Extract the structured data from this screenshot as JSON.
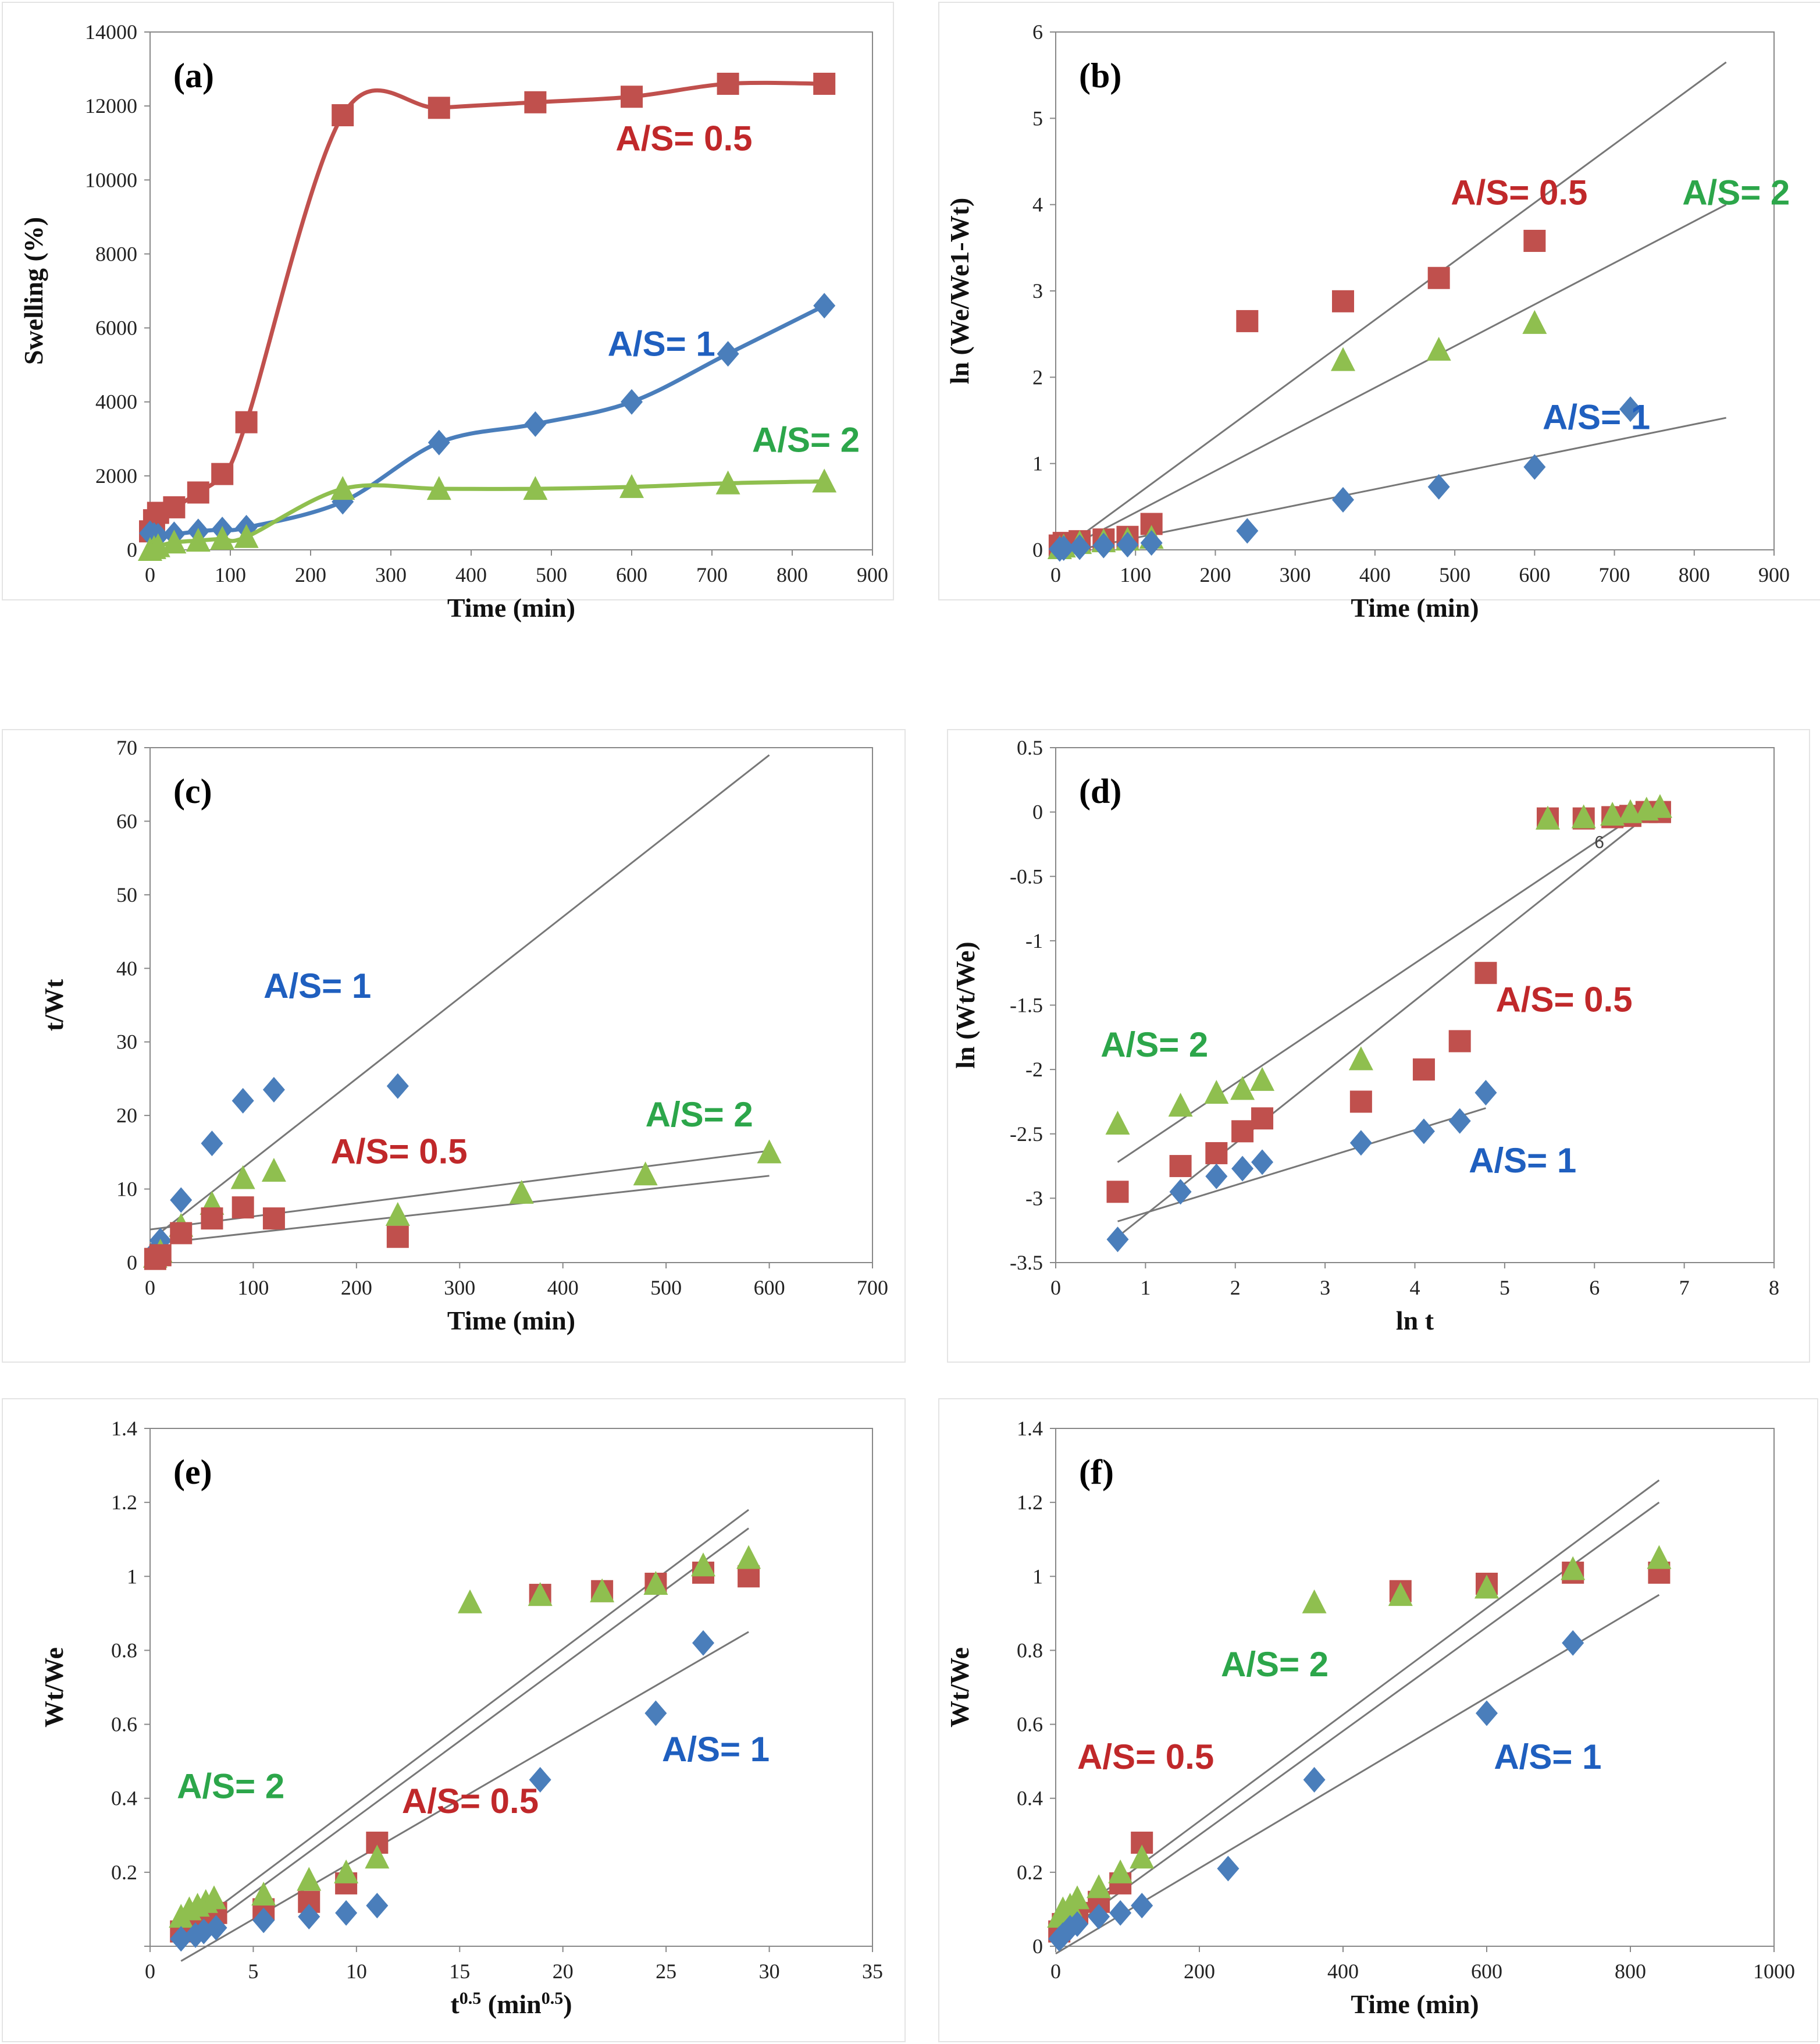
{
  "colors": {
    "red": "#c0504d",
    "blue": "#4a7ebb",
    "green": "#8fbf4f",
    "ann_red": "#c0282a",
    "ann_blue": "#1f5fbf",
    "ann_green": "#2ca64a"
  },
  "chart_data": [
    {
      "id": "a",
      "type": "line",
      "panel_label": "(a)",
      "xlabel": "Time (min)",
      "ylabel": "Swelling (%)",
      "xlim": [
        0,
        900
      ],
      "ylim": [
        0,
        14000
      ],
      "xticks": [
        "0",
        "100",
        "200",
        "300",
        "400",
        "500",
        "600",
        "700",
        "800",
        "900"
      ],
      "yticks": [
        "0",
        "2000",
        "4000",
        "6000",
        "8000",
        "10000",
        "12000",
        "14000"
      ],
      "series": [
        {
          "name": "A/S= 0.5",
          "color": "red",
          "marker": "square",
          "smooth": true,
          "x": [
            0,
            5,
            10,
            30,
            60,
            90,
            120,
            240,
            360,
            480,
            600,
            720,
            840
          ],
          "y": [
            500,
            800,
            1000,
            1150,
            1550,
            2050,
            3450,
            11750,
            11950,
            12100,
            12250,
            12600,
            12600
          ]
        },
        {
          "name": "A/S= 1",
          "color": "blue",
          "marker": "diamond",
          "smooth": true,
          "x": [
            0,
            5,
            10,
            30,
            60,
            90,
            120,
            240,
            360,
            480,
            600,
            720,
            840
          ],
          "y": [
            450,
            400,
            380,
            420,
            500,
            550,
            600,
            1300,
            2900,
            3400,
            4000,
            5300,
            6600
          ]
        },
        {
          "name": "A/S= 2",
          "color": "green",
          "marker": "triangle",
          "smooth": true,
          "x": [
            0,
            5,
            10,
            30,
            60,
            90,
            120,
            240,
            360,
            480,
            600,
            720,
            840
          ],
          "y": [
            0,
            50,
            100,
            200,
            250,
            300,
            350,
            1650,
            1650,
            1650,
            1700,
            1800,
            1850
          ]
        }
      ],
      "annotations": [
        {
          "text": "A/S= 0.5",
          "color": "ann_red",
          "x": 580,
          "y": 10800
        },
        {
          "text": "A/S= 1",
          "color": "ann_blue",
          "x": 570,
          "y": 5250
        },
        {
          "text": "A/S= 2",
          "color": "ann_green",
          "x": 750,
          "y": 2650
        }
      ]
    },
    {
      "id": "b",
      "type": "scatter",
      "panel_label": "(b)",
      "xlabel": "Time (min)",
      "ylabel": "ln (We/We1-Wt)",
      "xlim": [
        0,
        900
      ],
      "ylim": [
        0,
        6
      ],
      "xticks": [
        "0",
        "100",
        "200",
        "300",
        "400",
        "500",
        "600",
        "700",
        "800",
        "900"
      ],
      "yticks": [
        "0",
        "1",
        "2",
        "3",
        "4",
        "5",
        "6"
      ],
      "series": [
        {
          "name": "A/S= 0.5",
          "color": "red",
          "marker": "square",
          "x": [
            5,
            10,
            30,
            60,
            90,
            120,
            240,
            360,
            480,
            600
          ],
          "y": [
            0.05,
            0.08,
            0.1,
            0.12,
            0.15,
            0.3,
            2.65,
            2.88,
            3.15,
            3.58
          ]
        },
        {
          "name": "A/S= 2",
          "color": "green",
          "marker": "triangle",
          "x": [
            5,
            10,
            30,
            60,
            90,
            120,
            360,
            480,
            600
          ],
          "y": [
            0.02,
            0.04,
            0.08,
            0.1,
            0.12,
            0.14,
            2.2,
            2.32,
            2.63
          ]
        },
        {
          "name": "A/S= 1",
          "color": "blue",
          "marker": "diamond",
          "x": [
            5,
            10,
            30,
            60,
            90,
            120,
            240,
            360,
            480,
            600,
            720
          ],
          "y": [
            0.01,
            0.02,
            0.03,
            0.05,
            0.06,
            0.08,
            0.22,
            0.58,
            0.73,
            0.96,
            1.63
          ]
        }
      ],
      "fit_lines": [
        {
          "x": [
            0,
            840
          ],
          "y": [
            -0.05,
            5.65
          ]
        },
        {
          "x": [
            0,
            840
          ],
          "y": [
            -0.05,
            4.0
          ]
        },
        {
          "x": [
            0,
            840
          ],
          "y": [
            -0.05,
            1.53
          ]
        }
      ],
      "annotations": [
        {
          "text": "A/S= 0.5",
          "color": "ann_red",
          "x": 495,
          "y": 4.0
        },
        {
          "text": "A/S= 2",
          "color": "ann_green",
          "x": 785,
          "y": 4.0
        },
        {
          "text": "A/S= 1",
          "color": "ann_blue",
          "x": 610,
          "y": 1.4
        }
      ]
    },
    {
      "id": "c",
      "type": "scatter",
      "panel_label": "(c)",
      "xlabel": "Time (min)",
      "ylabel": "t/Wt",
      "xlim": [
        0,
        700
      ],
      "ylim": [
        0,
        70
      ],
      "xticks": [
        "0",
        "100",
        "200",
        "300",
        "400",
        "500",
        "600",
        "700"
      ],
      "yticks": [
        "0",
        "10",
        "20",
        "30",
        "40",
        "50",
        "60",
        "70"
      ],
      "series": [
        {
          "name": "A/S= 1",
          "color": "blue",
          "marker": "diamond",
          "x": [
            5,
            10,
            30,
            60,
            90,
            120,
            240
          ],
          "y": [
            1.5,
            3.0,
            8.5,
            16.2,
            22.0,
            23.5,
            24.0
          ]
        },
        {
          "name": "A/S= 2",
          "color": "green",
          "marker": "triangle",
          "x": [
            5,
            10,
            30,
            60,
            90,
            120,
            240,
            360,
            480,
            600
          ],
          "y": [
            0.8,
            1.5,
            5.0,
            8.0,
            11.5,
            12.5,
            6.5,
            9.5,
            12.0,
            15.0
          ]
        },
        {
          "name": "A/S= 0.5",
          "color": "red",
          "marker": "square",
          "x": [
            5,
            10,
            30,
            60,
            90,
            120,
            240
          ],
          "y": [
            0.5,
            1.0,
            4.0,
            6.0,
            7.5,
            6.0,
            3.5
          ]
        }
      ],
      "fit_lines": [
        {
          "x": [
            0,
            600
          ],
          "y": [
            3.0,
            69.0
          ]
        },
        {
          "x": [
            0,
            600
          ],
          "y": [
            4.5,
            15.2
          ]
        },
        {
          "x": [
            0,
            600
          ],
          "y": [
            2.5,
            11.8
          ]
        }
      ],
      "annotations": [
        {
          "text": "A/S= 1",
          "color": "ann_blue",
          "x": 110,
          "y": 36
        },
        {
          "text": "A/S= 0.5",
          "color": "ann_red",
          "x": 175,
          "y": 13.5
        },
        {
          "text": "A/S= 2",
          "color": "ann_green",
          "x": 480,
          "y": 18.5
        }
      ]
    },
    {
      "id": "d",
      "type": "scatter",
      "panel_label": "(d)",
      "xlabel": "ln t",
      "ylabel": "ln (Wt/We)",
      "xlim": [
        0,
        8
      ],
      "ylim": [
        -3.5,
        0.5
      ],
      "xticks": [
        "0",
        "1",
        "2",
        "3",
        "4",
        "5",
        "6",
        "7",
        "8"
      ],
      "yticks": [
        "-3.5",
        "-3",
        "-2.5",
        "-2",
        "-1.5",
        "-1",
        "-0.5",
        "0",
        "0.5"
      ],
      "series": [
        {
          "name": "A/S= 0.5",
          "color": "red",
          "marker": "square",
          "x": [
            0.69,
            1.39,
            1.79,
            2.08,
            2.3,
            3.4,
            4.1,
            4.5,
            4.79,
            5.48,
            5.88,
            6.2,
            6.4,
            6.58,
            6.73
          ],
          "y": [
            -2.95,
            -2.75,
            -2.65,
            -2.48,
            -2.38,
            -2.25,
            -2.0,
            -1.78,
            -1.25,
            -0.05,
            -0.05,
            -0.04,
            -0.03,
            0.0,
            0.0
          ]
        },
        {
          "name": "A/S= 2",
          "color": "green",
          "marker": "triangle",
          "x": [
            0.69,
            1.39,
            1.79,
            2.08,
            2.3,
            3.4,
            5.48,
            5.88,
            6.2,
            6.4,
            6.58,
            6.73
          ],
          "y": [
            -2.42,
            -2.28,
            -2.18,
            -2.15,
            -2.08,
            -1.92,
            -0.05,
            -0.04,
            -0.02,
            0.0,
            0.02,
            0.04
          ]
        },
        {
          "name": "A/S= 1",
          "color": "blue",
          "marker": "diamond",
          "x": [
            0.69,
            1.39,
            1.79,
            2.08,
            2.3,
            3.4,
            4.1,
            4.5,
            4.79
          ],
          "y": [
            -3.32,
            -2.95,
            -2.83,
            -2.77,
            -2.72,
            -2.57,
            -2.48,
            -2.4,
            -2.18
          ]
        }
      ],
      "fit_lines": [
        {
          "x": [
            0.69,
            6.73
          ],
          "y": [
            -2.72,
            0.1
          ]
        },
        {
          "x": [
            0.69,
            6.73
          ],
          "y": [
            -3.3,
            0.05
          ]
        },
        {
          "x": [
            0.69,
            4.79
          ],
          "y": [
            -3.18,
            -2.3
          ]
        }
      ],
      "annotations": [
        {
          "text": "A/S= 2",
          "color": "ann_green",
          "x": 0.5,
          "y": -1.9
        },
        {
          "text": "A/S= 0.5",
          "color": "ann_red",
          "x": 4.9,
          "y": -1.55
        },
        {
          "text": "A/S= 1",
          "color": "ann_blue",
          "x": 4.6,
          "y": -2.8
        }
      ],
      "stray_labels": [
        {
          "text": "6",
          "x": 6.0,
          "y": -0.28
        }
      ]
    },
    {
      "id": "e",
      "type": "scatter",
      "panel_label": "(e)",
      "xlabel": "t0.5 (min0.5)",
      "ylabel": "Wt/We",
      "xlim": [
        0,
        35
      ],
      "ylim": [
        0,
        1.4
      ],
      "xticks": [
        "0",
        "5",
        "10",
        "15",
        "20",
        "25",
        "30",
        "35"
      ],
      "yticks": [
        "",
        "0.2",
        "0.4",
        "0.6",
        "0.8",
        "1",
        "1.2",
        "1.4"
      ],
      "series": [
        {
          "name": "A/S= 0.5",
          "color": "red",
          "marker": "square",
          "x": [
            1.5,
            2.2,
            2.6,
            3.2,
            5.5,
            7.7,
            9.5,
            11.0,
            18.9,
            21.9,
            24.5,
            26.8,
            29.0
          ],
          "y": [
            0.04,
            0.06,
            0.07,
            0.09,
            0.1,
            0.12,
            0.17,
            0.28,
            0.95,
            0.96,
            0.98,
            1.01,
            1.0
          ]
        },
        {
          "name": "A/S= 2",
          "color": "green",
          "marker": "triangle",
          "x": [
            1.5,
            1.9,
            2.3,
            2.7,
            3.1,
            5.5,
            7.7,
            9.5,
            11.0,
            15.5,
            18.9,
            21.9,
            24.5,
            26.8,
            29.0
          ],
          "y": [
            0.08,
            0.1,
            0.11,
            0.12,
            0.13,
            0.14,
            0.18,
            0.2,
            0.24,
            0.93,
            0.95,
            0.96,
            0.98,
            1.03,
            1.05
          ]
        },
        {
          "name": "A/S= 1",
          "color": "blue",
          "marker": "diamond",
          "x": [
            1.5,
            2.2,
            2.6,
            3.2,
            5.5,
            7.7,
            9.5,
            11.0,
            18.9,
            24.5,
            26.8
          ],
          "y": [
            0.02,
            0.03,
            0.04,
            0.05,
            0.07,
            0.08,
            0.09,
            0.11,
            0.45,
            0.63,
            0.82
          ]
        }
      ],
      "fit_lines": [
        {
          "x": [
            1.5,
            29.0
          ],
          "y": [
            0.03,
            1.18
          ]
        },
        {
          "x": [
            1.5,
            29.0
          ],
          "y": [
            0.0,
            1.13
          ]
        },
        {
          "x": [
            1.5,
            29.0
          ],
          "y": [
            -0.04,
            0.85
          ]
        }
      ],
      "annotations": [
        {
          "text": "A/S= 2",
          "color": "ann_green",
          "x": 1.3,
          "y": 0.4
        },
        {
          "text": "A/S= 0.5",
          "color": "ann_red",
          "x": 12.2,
          "y": 0.36
        },
        {
          "text": "A/S= 1",
          "color": "ann_blue",
          "x": 24.8,
          "y": 0.5
        }
      ]
    },
    {
      "id": "f",
      "type": "scatter",
      "panel_label": "(f)",
      "xlabel": "Time (min)",
      "ylabel": "Wt/We",
      "xlim": [
        0,
        1000
      ],
      "ylim": [
        0,
        1.4
      ],
      "xticks": [
        "0",
        "200",
        "400",
        "600",
        "800",
        "1000"
      ],
      "yticks": [
        "0",
        "0.2",
        "0.4",
        "0.6",
        "0.8",
        "1",
        "1.2",
        "1.4"
      ],
      "series": [
        {
          "name": "A/S= 0.5",
          "color": "red",
          "marker": "square",
          "x": [
            5,
            10,
            20,
            30,
            60,
            90,
            120,
            480,
            600,
            720,
            840
          ],
          "y": [
            0.04,
            0.06,
            0.08,
            0.09,
            0.12,
            0.17,
            0.28,
            0.96,
            0.98,
            1.01,
            1.01
          ]
        },
        {
          "name": "A/S= 2",
          "color": "green",
          "marker": "triangle",
          "x": [
            5,
            10,
            20,
            30,
            60,
            90,
            120,
            360,
            480,
            600,
            720,
            840
          ],
          "y": [
            0.08,
            0.1,
            0.11,
            0.13,
            0.16,
            0.2,
            0.24,
            0.93,
            0.95,
            0.97,
            1.02,
            1.05
          ]
        },
        {
          "name": "A/S= 1",
          "color": "blue",
          "marker": "diamond",
          "x": [
            5,
            10,
            20,
            30,
            60,
            90,
            120,
            240,
            360,
            600,
            720
          ],
          "y": [
            0.02,
            0.03,
            0.05,
            0.06,
            0.08,
            0.09,
            0.11,
            0.21,
            0.45,
            0.63,
            0.82
          ]
        }
      ],
      "fit_lines": [
        {
          "x": [
            0,
            840
          ],
          "y": [
            0.05,
            1.26
          ]
        },
        {
          "x": [
            0,
            840
          ],
          "y": [
            0.02,
            1.2
          ]
        },
        {
          "x": [
            0,
            840
          ],
          "y": [
            -0.02,
            0.95
          ]
        }
      ],
      "annotations": [
        {
          "text": "A/S= 2",
          "color": "ann_green",
          "x": 230,
          "y": 0.73
        },
        {
          "text": "A/S= 0.5",
          "color": "ann_red",
          "x": 30,
          "y": 0.48
        },
        {
          "text": "A/S= 1",
          "color": "ann_blue",
          "x": 610,
          "y": 0.48
        }
      ]
    }
  ]
}
